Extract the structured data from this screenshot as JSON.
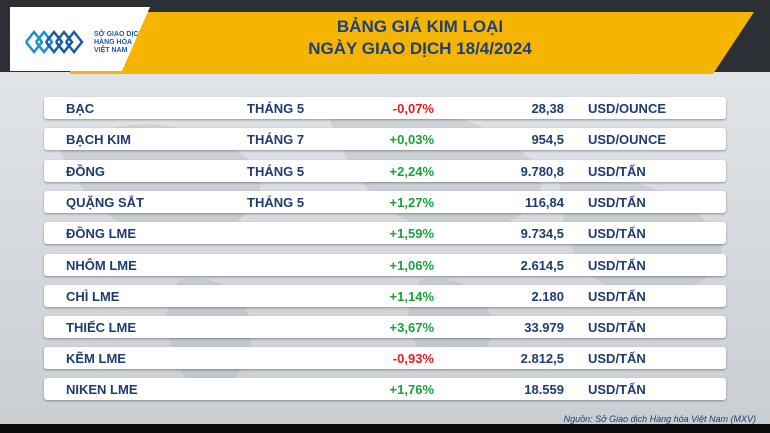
{
  "logo": {
    "line1": "SỞ GIAO DỊCH",
    "line2": "HÀNG HÓA",
    "line3": "VIỆT NAM"
  },
  "title": {
    "line1": "BẢNG GIÁ KIM LOẠI",
    "line2": "NGÀY GIAO DỊCH 18/4/2024"
  },
  "colors": {
    "banner": "#f4b400",
    "text": "#1e3b72",
    "up": "#18a338",
    "down": "#e11d1d"
  },
  "rows": [
    {
      "name": "BẠC",
      "month": "THÁNG 5",
      "change": "-0,07%",
      "direction": "down",
      "price": "28,38",
      "unit": "USD/OUNCE"
    },
    {
      "name": "BẠCH KIM",
      "month": "THÁNG 7",
      "change": "+0,03%",
      "direction": "up",
      "price": "954,5",
      "unit": "USD/OUNCE"
    },
    {
      "name": "ĐỒNG",
      "month": "THÁNG 5",
      "change": "+2,24%",
      "direction": "up",
      "price": "9.780,8",
      "unit": "USD/TẤN"
    },
    {
      "name": "QUẶNG SẮT",
      "month": "THÁNG 5",
      "change": "+1,27%",
      "direction": "up",
      "price": "116,84",
      "unit": "USD/TẤN"
    },
    {
      "name": "ĐỒNG LME",
      "month": "",
      "change": "+1,59%",
      "direction": "up",
      "price": "9.734,5",
      "unit": "USD/TẤN"
    },
    {
      "name": "NHÔM LME",
      "month": "",
      "change": "+1,06%",
      "direction": "up",
      "price": "2.614,5",
      "unit": "USD/TẤN"
    },
    {
      "name": "CHÌ LME",
      "month": "",
      "change": "+1,14%",
      "direction": "up",
      "price": "2.180",
      "unit": "USD/TẤN"
    },
    {
      "name": "THIẾC LME",
      "month": "",
      "change": "+3,67%",
      "direction": "up",
      "price": "33.979",
      "unit": "USD/TẤN"
    },
    {
      "name": "KẼM LME",
      "month": "",
      "change": "-0,93%",
      "direction": "down",
      "price": "2.812,5",
      "unit": "USD/TẤN"
    },
    {
      "name": "NIKEN LME",
      "month": "",
      "change": "+1,76%",
      "direction": "up",
      "price": "18.559",
      "unit": "USD/TẤN"
    }
  ],
  "source": "Nguồn: Sở Giao dịch Hàng hóa Việt Nam (MXV)"
}
